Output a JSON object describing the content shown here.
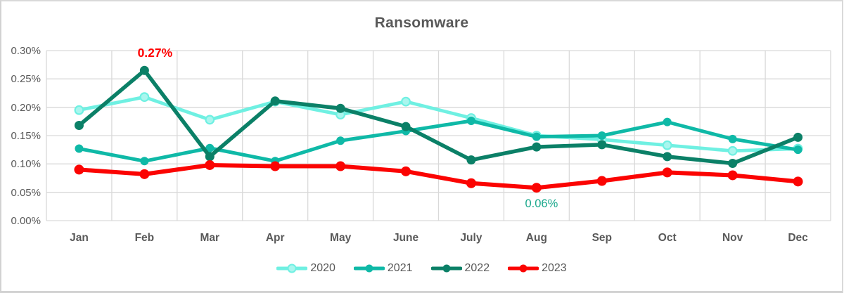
{
  "window": {
    "title": "Ransomware"
  },
  "colors": {
    "text": "#595959",
    "grid": "#D9D9D9",
    "background": "#FFFFFF",
    "frame": "#D2D2D2"
  },
  "chart_data": {
    "type": "line",
    "title": "Ransomware",
    "xlabel": "",
    "ylabel": "",
    "grid": true,
    "legend_position": "bottom",
    "ylim": [
      0,
      0.3
    ],
    "y_tick_step": 0.05,
    "y_ticks": [
      "0.30%",
      "0.25%",
      "0.20%",
      "0.15%",
      "0.10%",
      "0.05%",
      "0.00%"
    ],
    "categories": [
      "Jan",
      "Feb",
      "Mar",
      "Apr",
      "May",
      "June",
      "July",
      "Aug",
      "Sep",
      "Oct",
      "Nov",
      "Dec"
    ],
    "series": [
      {
        "name": "2020",
        "color": "#6FF0E2",
        "marker_color": "#A9F6EE",
        "values": [
          0.195,
          0.218,
          0.178,
          0.21,
          0.187,
          0.21,
          0.181,
          0.15,
          0.143,
          0.133,
          0.123,
          0.127
        ]
      },
      {
        "name": "2021",
        "color": "#0FB9A7",
        "marker_color": "#0FB9A7",
        "values": [
          0.127,
          0.105,
          0.128,
          0.105,
          0.141,
          0.158,
          0.176,
          0.148,
          0.15,
          0.174,
          0.144,
          0.125
        ]
      },
      {
        "name": "2022",
        "color": "#0B8067",
        "marker_color": "#0B8067",
        "values": [
          0.168,
          0.265,
          0.113,
          0.211,
          0.198,
          0.166,
          0.107,
          0.13,
          0.134,
          0.113,
          0.101,
          0.147
        ]
      },
      {
        "name": "2023",
        "color": "#FB0402",
        "marker_color": "#FB0402",
        "values": [
          0.09,
          0.082,
          0.098,
          0.096,
          0.096,
          0.087,
          0.066,
          0.058,
          0.07,
          0.085,
          0.08,
          0.069
        ]
      }
    ],
    "annotations": [
      {
        "text": "0.27%",
        "color": "#FF0000",
        "bold": true,
        "month_index": 1,
        "value": 0.265,
        "dx": 15,
        "position": "above"
      },
      {
        "text": "0.06%",
        "color": "#1BA88C",
        "bold": false,
        "month_index": 7,
        "value": 0.058,
        "dx": 7,
        "position": "below"
      }
    ]
  }
}
